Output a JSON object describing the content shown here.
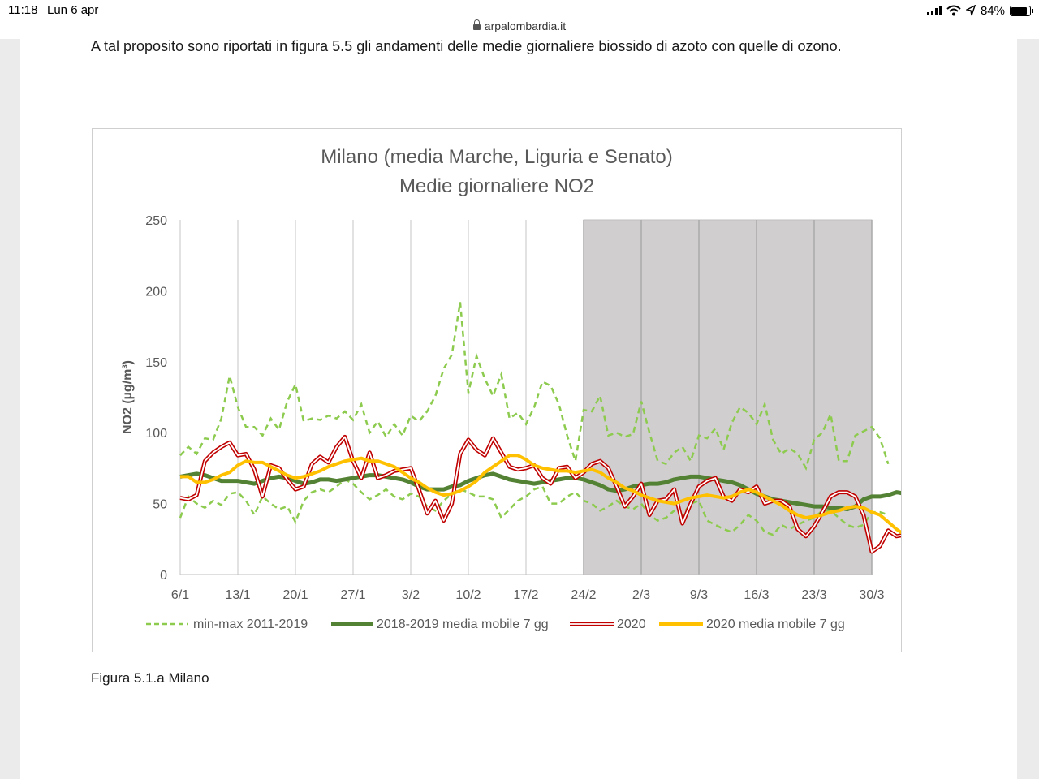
{
  "status_bar": {
    "time": "11:18",
    "date": "Lun 6 apr",
    "url": "arpalombardia.it",
    "battery": "84%",
    "icons": [
      "lock-icon",
      "cellular-signal-icon",
      "wifi-icon",
      "location-arrow-icon",
      "battery-icon"
    ]
  },
  "document": {
    "paragraph": "A tal proposito sono riportati in figura 5.5 gli andamenti delle medie giornaliere biossido di azoto con quelle di ozono.",
    "caption": "Figura 5.1.a Milano"
  },
  "colors": {
    "minmax": "#8dcb4f",
    "media_2018_2019": "#548235",
    "line_2020": "#c00000",
    "media_2020": "#ffc000",
    "lockdown_shade": "#d0cece"
  },
  "chart_data": {
    "type": "line",
    "title": "Milano (media Marche, Liguria e Senato)",
    "subtitle": "Medie giornaliere NO2",
    "ylabel": "NO2 (µg/m³)",
    "xlabel": "",
    "ylim": [
      0,
      250
    ],
    "yticks": [
      0,
      50,
      100,
      150,
      200,
      250
    ],
    "x_tick_labels": [
      "6/1",
      "13/1",
      "20/1",
      "27/1",
      "3/2",
      "10/2",
      "17/2",
      "24/2",
      "2/3",
      "9/3",
      "16/3",
      "23/3",
      "30/3"
    ],
    "x_start": "6/1",
    "x_end": "30/3",
    "grid": "vertical lines at weekly ticks",
    "legend_position": "bottom",
    "shaded_period": {
      "from": "24/2",
      "to": "30/3"
    },
    "series": [
      {
        "name": "min-max 2011-2019",
        "style": "dashed",
        "subseries": "max",
        "values": [
          84,
          90,
          85,
          96,
          95,
          110,
          140,
          118,
          104,
          104,
          98,
          110,
          102,
          122,
          134,
          108,
          110,
          109,
          112,
          110,
          115,
          109,
          120,
          100,
          108,
          97,
          106,
          98,
          112,
          108,
          115,
          126,
          145,
          155,
          192,
          128,
          154,
          138,
          126,
          141,
          110,
          114,
          106,
          118,
          136,
          133,
          120,
          98,
          80,
          116,
          115,
          126,
          98,
          100,
          97,
          99,
          122,
          100,
          80,
          78,
          86,
          90,
          80,
          98,
          96,
          103,
          88,
          107,
          118,
          114,
          106,
          120,
          95,
          85,
          89,
          85,
          75,
          95,
          100,
          113,
          80,
          80,
          98,
          101,
          104,
          96,
          78
        ]
      },
      {
        "name": "min-max 2011-2019",
        "style": "dashed",
        "subseries": "min",
        "values": [
          40,
          55,
          50,
          47,
          52,
          49,
          57,
          58,
          52,
          42,
          55,
          50,
          46,
          48,
          37,
          52,
          58,
          60,
          58,
          62,
          67,
          64,
          58,
          53,
          56,
          60,
          55,
          53,
          57,
          55,
          48,
          45,
          52,
          57,
          60,
          58,
          55,
          55,
          53,
          40,
          46,
          52,
          55,
          60,
          62,
          50,
          50,
          55,
          58,
          52,
          50,
          45,
          48,
          52,
          48,
          46,
          50,
          42,
          38,
          40,
          45,
          42,
          50,
          52,
          38,
          35,
          32,
          30,
          35,
          42,
          38,
          30,
          28,
          35,
          32,
          35,
          38,
          40,
          45,
          45,
          40,
          35,
          33,
          35,
          44,
          44,
          42
        ]
      },
      {
        "name": "2018-2019 media mobile 7 gg",
        "style": "thick",
        "values": [
          69,
          70,
          71,
          70,
          68,
          66,
          66,
          66,
          65,
          64,
          66,
          68,
          69,
          68,
          66,
          64,
          65,
          67,
          67,
          66,
          67,
          68,
          69,
          70,
          70,
          69,
          68,
          67,
          65,
          62,
          60,
          60,
          60,
          62,
          63,
          66,
          68,
          70,
          71,
          69,
          67,
          66,
          65,
          64,
          65,
          66,
          67,
          68,
          68,
          67,
          65,
          63,
          60,
          59,
          60,
          62,
          63,
          64,
          64,
          65,
          67,
          68,
          69,
          69,
          68,
          67,
          66,
          65,
          63,
          60,
          57,
          55,
          53,
          52,
          51,
          50,
          49,
          48,
          48,
          47,
          47,
          46,
          48,
          53,
          55,
          55,
          56,
          58,
          57,
          56,
          53,
          52
        ]
      },
      {
        "name": "2020",
        "style": "double",
        "values": [
          54,
          53,
          56,
          80,
          86,
          90,
          93,
          84,
          85,
          74,
          55,
          77,
          75,
          67,
          60,
          62,
          78,
          83,
          79,
          90,
          97,
          80,
          68,
          86,
          68,
          70,
          73,
          74,
          75,
          60,
          43,
          52,
          38,
          50,
          85,
          95,
          88,
          84,
          96,
          86,
          76,
          74,
          75,
          77,
          68,
          64,
          75,
          76,
          68,
          72,
          78,
          80,
          75,
          62,
          48,
          55,
          64,
          42,
          52,
          53,
          60,
          36,
          50,
          62,
          66,
          68,
          55,
          52,
          60,
          58,
          62,
          50,
          52,
          52,
          48,
          32,
          27,
          34,
          44,
          55,
          58,
          58,
          55,
          42,
          16,
          20,
          31,
          27,
          28,
          30,
          29
        ]
      },
      {
        "name": "2020 media mobile 7 gg",
        "style": "solid",
        "values": [
          69,
          69,
          65,
          65,
          67,
          70,
          72,
          77,
          80,
          79,
          79,
          76,
          73,
          70,
          68,
          69,
          71,
          73,
          76,
          78,
          80,
          81,
          82,
          80,
          80,
          78,
          76,
          72,
          68,
          65,
          61,
          58,
          56,
          57,
          59,
          62,
          66,
          72,
          76,
          80,
          84,
          84,
          81,
          77,
          75,
          74,
          73,
          73,
          72,
          73,
          74,
          72,
          68,
          65,
          61,
          59,
          56,
          54,
          52,
          51,
          50,
          52,
          54,
          55,
          56,
          55,
          54,
          55,
          58,
          60,
          58,
          55,
          52,
          49,
          45,
          42,
          40,
          41,
          42,
          44,
          45,
          47,
          48,
          47,
          44,
          42,
          37,
          32,
          28,
          26,
          27,
          28
        ]
      }
    ]
  }
}
